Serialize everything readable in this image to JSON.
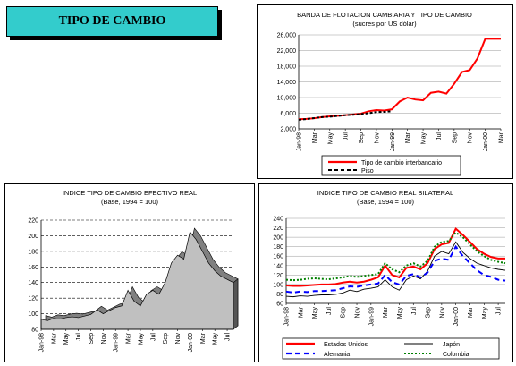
{
  "page_title": "TIPO DE CAMBIO",
  "colors": {
    "red": "#ff0000",
    "black": "#000000",
    "blue": "#0000ff",
    "green": "#008000",
    "area_fill": "#c0c0c0",
    "area_side": "#808080",
    "title_bg": "#33cccc"
  },
  "chart_data": [
    {
      "type": "line",
      "title": "BANDA DE FLOTACION CAMBIARIA Y TIPO DE CAMBIO",
      "subtitle": "(sucres por US dólar)",
      "x_labels": [
        "Jan-98",
        "Mar",
        "May",
        "Jul",
        "Sep",
        "Nov",
        "Jan-99",
        "Mar",
        "May",
        "Jul",
        "Sep",
        "Nov",
        "Jan-00",
        "Mar"
      ],
      "y_ticks": [
        2000,
        6000,
        10000,
        14000,
        18000,
        22000,
        26000
      ],
      "y_tick_labels": [
        "2,000",
        "6,000",
        "10,000",
        "14,000",
        "18,000",
        "22,000",
        "26,000"
      ],
      "ylim": [
        2000,
        26000
      ],
      "grid": true,
      "legend_position": "bottom",
      "series": [
        {
          "name": "Tipo de cambio interbancario",
          "color": "#ff0000",
          "style": "solid",
          "x": [
            0,
            1,
            2,
            3,
            4,
            5,
            6,
            7,
            8,
            9,
            10,
            11,
            12,
            13,
            14,
            15,
            16,
            17,
            18,
            19,
            20,
            21,
            22,
            23,
            24,
            25,
            26
          ],
          "values": [
            4450,
            4550,
            4700,
            5000,
            5200,
            5350,
            5500,
            5700,
            5900,
            6500,
            6800,
            6700,
            7000,
            9000,
            10000,
            9500,
            9300,
            11200,
            11500,
            11000,
            13500,
            16500,
            17000,
            20000,
            25000,
            25000,
            25000
          ]
        },
        {
          "name": "Piso",
          "color": "#000000",
          "style": "dashed",
          "x": [
            0,
            1,
            2,
            3,
            4,
            5,
            6,
            7,
            8,
            9,
            10,
            11,
            12
          ],
          "values": [
            4300,
            4500,
            4750,
            5000,
            5100,
            5300,
            5500,
            5600,
            5800,
            6000,
            6300,
            6350,
            6500
          ]
        }
      ]
    },
    {
      "type": "area",
      "title": "INDICE TIPO DE CAMBIO EFECTIVO REAL",
      "subtitle": "(Base, 1994 = 100)",
      "x_labels": [
        "Jan-98",
        "Mar",
        "May",
        "Jul",
        "Sep",
        "Nov",
        "Jan-99",
        "Mar",
        "May",
        "Jul",
        "Sep",
        "Nov",
        "Jan-00",
        "Mar",
        "May",
        "Jul"
      ],
      "y_ticks": [
        80,
        100,
        120,
        140,
        160,
        180,
        200,
        220
      ],
      "ylim": [
        80,
        220
      ],
      "grid": true,
      "series": [
        {
          "name": "",
          "x": [
            0,
            1,
            2,
            3,
            4,
            5,
            6,
            7,
            8,
            9,
            10,
            11,
            12,
            13,
            14,
            15,
            16,
            17,
            18,
            19,
            20,
            21,
            22,
            23,
            24,
            25,
            26,
            27,
            28,
            29,
            30,
            31
          ],
          "values": [
            93,
            91,
            94,
            93,
            95,
            96,
            95,
            97,
            99,
            105,
            100,
            104,
            108,
            110,
            130,
            116,
            110,
            125,
            130,
            125,
            140,
            165,
            175,
            170,
            205,
            195,
            180,
            165,
            155,
            148,
            144,
            140
          ]
        }
      ]
    },
    {
      "type": "line",
      "title": "INDICE TIPO DE CAMBIO REAL BILATERAL",
      "subtitle": "(Base, 1994 = 100)",
      "x_labels": [
        "Jan-98",
        "Mar",
        "May",
        "Jul",
        "Sep",
        "Nov",
        "Jan-99",
        "Mar",
        "May",
        "Jul",
        "Sep",
        "Nov",
        "Jan-00",
        "Mar",
        "May",
        "Jul"
      ],
      "y_ticks": [
        60,
        80,
        100,
        120,
        140,
        160,
        180,
        200,
        220,
        240
      ],
      "ylim": [
        60,
        240
      ],
      "grid": true,
      "legend_position": "bottom",
      "series": [
        {
          "name": "Estados Unidos",
          "color": "#ff0000",
          "style": "solid",
          "x": [
            0,
            1,
            2,
            3,
            4,
            5,
            6,
            7,
            8,
            9,
            10,
            11,
            12,
            13,
            14,
            15,
            16,
            17,
            18,
            19,
            20,
            21,
            22,
            23,
            24,
            25,
            26,
            27,
            28,
            29,
            30,
            31
          ],
          "values": [
            98,
            97,
            97,
            98,
            99,
            100,
            100,
            101,
            104,
            106,
            104,
            106,
            110,
            115,
            140,
            120,
            115,
            135,
            138,
            132,
            145,
            175,
            185,
            188,
            218,
            205,
            190,
            175,
            165,
            158,
            155,
            155
          ]
        },
        {
          "name": "Japón",
          "color": "#000000",
          "style": "solid",
          "x": [
            0,
            1,
            2,
            3,
            4,
            5,
            6,
            7,
            8,
            9,
            10,
            11,
            12,
            13,
            14,
            15,
            16,
            17,
            18,
            19,
            20,
            21,
            22,
            23,
            24,
            25,
            26,
            27,
            28,
            29,
            30,
            31
          ],
          "values": [
            75,
            74,
            76,
            75,
            77,
            78,
            78,
            79,
            82,
            88,
            85,
            90,
            92,
            95,
            110,
            95,
            88,
            110,
            118,
            112,
            128,
            160,
            170,
            165,
            190,
            168,
            155,
            145,
            140,
            135,
            132,
            130
          ]
        },
        {
          "name": "Alemania",
          "color": "#0000ff",
          "style": "dashed",
          "x": [
            0,
            1,
            2,
            3,
            4,
            5,
            6,
            7,
            8,
            9,
            10,
            11,
            12,
            13,
            14,
            15,
            16,
            17,
            18,
            19,
            20,
            21,
            22,
            23,
            24,
            25,
            26,
            27,
            28,
            29,
            30,
            31
          ],
          "values": [
            85,
            83,
            85,
            84,
            86,
            86,
            87,
            88,
            92,
            96,
            95,
            98,
            100,
            102,
            120,
            105,
            100,
            118,
            122,
            115,
            125,
            150,
            155,
            152,
            180,
            160,
            145,
            130,
            120,
            116,
            110,
            108
          ]
        },
        {
          "name": "Colombia",
          "color": "#008000",
          "style": "dotted",
          "x": [
            0,
            1,
            2,
            3,
            4,
            5,
            6,
            7,
            8,
            9,
            10,
            11,
            12,
            13,
            14,
            15,
            16,
            17,
            18,
            19,
            20,
            21,
            22,
            23,
            24,
            25,
            26,
            27,
            28,
            29,
            30,
            31
          ],
          "values": [
            110,
            109,
            110,
            112,
            113,
            112,
            111,
            113,
            115,
            118,
            116,
            118,
            120,
            122,
            145,
            132,
            126,
            140,
            145,
            138,
            150,
            180,
            190,
            192,
            210,
            200,
            185,
            170,
            160,
            152,
            148,
            145
          ]
        }
      ]
    }
  ]
}
